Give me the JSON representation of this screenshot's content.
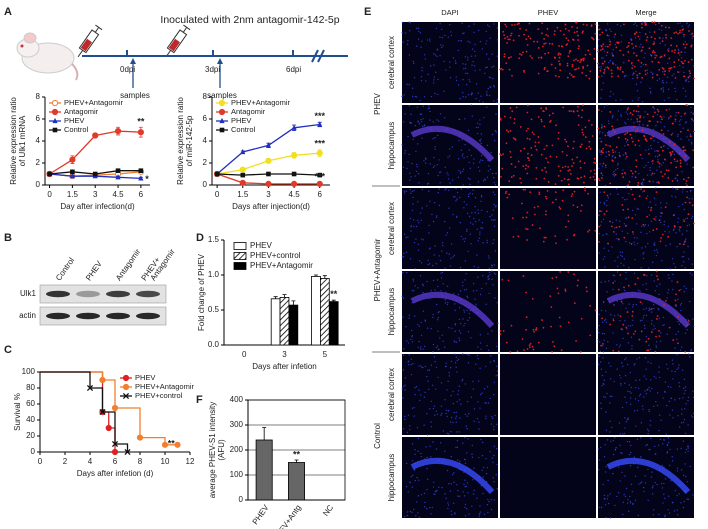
{
  "panel_labels": [
    "A",
    "B",
    "C",
    "D",
    "E",
    "F"
  ],
  "schematic": {
    "title": "Inoculated with 2nm antagomir-142-5p",
    "timepoints": [
      "0dpi",
      "3dpi",
      "6dpi"
    ],
    "sampling": [
      "samples",
      "samples"
    ]
  },
  "chart_data": [
    {
      "type": "line",
      "x_label": "Day after infection(d)",
      "y_label": [
        "Relative expression ratio",
        "of Ulk1 mRNA"
      ],
      "x": [
        0,
        1.5,
        3,
        4.5,
        6
      ],
      "xlim": [
        -0.3,
        6.6
      ],
      "xticks": [
        0,
        1.5,
        3,
        4.5,
        6
      ],
      "ylim": [
        0,
        8
      ],
      "yticks": [
        0,
        2,
        4,
        6,
        8
      ],
      "legend": "upper left",
      "series": [
        {
          "name": "PHEV+Antagomir",
          "color": "#f08030",
          "marker": "circle-open",
          "values": [
            1,
            0.8,
            0.9,
            1.0,
            1.2
          ],
          "errors": [
            0.05,
            0.1,
            0.1,
            0.1,
            0.15
          ]
        },
        {
          "name": "Antagomir",
          "color": "#e03a2a",
          "marker": "circle",
          "values": [
            1,
            2.3,
            4.5,
            4.9,
            4.8
          ],
          "errors": [
            0.05,
            0.35,
            0.2,
            0.35,
            0.45
          ]
        },
        {
          "name": "PHEV",
          "color": "#2030c0",
          "marker": "triangle",
          "values": [
            1,
            0.8,
            0.8,
            0.7,
            0.6
          ],
          "errors": [
            0.05,
            0.1,
            0.1,
            0.1,
            0.1
          ]
        },
        {
          "name": "Control",
          "color": "#111111",
          "marker": "square",
          "values": [
            1,
            1.2,
            1.0,
            1.3,
            1.3
          ],
          "errors": [
            0.05,
            0.1,
            0.1,
            0.1,
            0.1
          ]
        }
      ],
      "annotations": [
        {
          "text": "**",
          "x": 6,
          "y": 5.7
        },
        {
          "text": "*",
          "x": 6.4,
          "y": 0.5
        }
      ]
    },
    {
      "type": "line",
      "x_label": "Days after injection(d)",
      "y_label": [
        "Relative expression ratio",
        "of miR-142-5p"
      ],
      "x": [
        0,
        1.5,
        3,
        4.5,
        6
      ],
      "xlim": [
        -0.3,
        6.6
      ],
      "xticks": [
        0,
        1.5,
        3,
        4.5,
        6
      ],
      "ylim": [
        0,
        8
      ],
      "yticks": [
        0,
        2,
        4,
        6,
        8
      ],
      "legend": "upper left",
      "series": [
        {
          "name": "PHEV+Antagomir",
          "color": "#f0e020",
          "marker": "circle",
          "values": [
            1,
            1.4,
            2.2,
            2.7,
            2.9
          ],
          "errors": [
            0.05,
            0.1,
            0.2,
            0.25,
            0.3
          ]
        },
        {
          "name": "Antagomir",
          "color": "#e03a2a",
          "marker": "circle",
          "values": [
            1,
            0.2,
            0.1,
            0.1,
            0.1
          ],
          "errors": [
            0.05,
            0.05,
            0.05,
            0.05,
            0.05
          ]
        },
        {
          "name": "PHEV",
          "color": "#2030c0",
          "marker": "triangle",
          "values": [
            1,
            3.0,
            3.6,
            5.2,
            5.5
          ],
          "errors": [
            0.05,
            0.1,
            0.2,
            0.25,
            0.2
          ]
        },
        {
          "name": "Control",
          "color": "#111111",
          "marker": "square",
          "values": [
            1,
            0.9,
            1.0,
            1.0,
            0.9
          ],
          "errors": [
            0.05,
            0.05,
            0.05,
            0.05,
            0.05
          ]
        }
      ],
      "annotations": [
        {
          "text": "***",
          "x": 6,
          "y": 6.2
        },
        {
          "text": "***",
          "x": 6,
          "y": 3.7
        },
        {
          "text": "***",
          "x": 6,
          "y": 0.7
        }
      ]
    },
    {
      "type": "step",
      "x_label": "Days after infetion (d)",
      "y_label": [
        "Survival %"
      ],
      "xlim": [
        0,
        12
      ],
      "xticks": [
        0,
        2,
        4,
        6,
        8,
        10,
        12
      ],
      "ylim": [
        0,
        100
      ],
      "yticks": [
        0,
        20,
        40,
        60,
        80,
        100
      ],
      "legend": "upper right",
      "series": [
        {
          "name": "PHEV",
          "color": "#e02020",
          "marker": "circle",
          "x": [
            0,
            5,
            5.5,
            6
          ],
          "values": [
            100,
            50,
            30,
            0
          ]
        },
        {
          "name": "PHEV+Antagomir",
          "color": "#f08030",
          "marker": "circle",
          "x": [
            0,
            5,
            6,
            8,
            10,
            11
          ],
          "values": [
            100,
            90,
            55,
            18,
            9,
            9
          ]
        },
        {
          "name": "PHEV+control",
          "color": "#111111",
          "marker": "x",
          "x": [
            0,
            4,
            5,
            6,
            7
          ],
          "values": [
            100,
            80,
            50,
            10,
            0
          ]
        }
      ],
      "annotations": [
        {
          "text": "**",
          "x": 10.5,
          "y": 10
        }
      ]
    },
    {
      "type": "bar",
      "x_label": "Days after infetion",
      "y_label": [
        "Fold change of PHEV"
      ],
      "categories": [
        "0",
        "3",
        "5"
      ],
      "ylim": [
        0,
        1.5
      ],
      "yticks": [
        {
          "value": 0,
          "label": "0.0"
        },
        0.5,
        {
          "value": 1,
          "label": "1.0"
        },
        1.5
      ],
      "legend": "upper left",
      "series": [
        {
          "name": "PHEV",
          "color": "#ffffff",
          "values": [
            null,
            0.66,
            0.98
          ],
          "errors": [
            null,
            0.03,
            0.02
          ]
        },
        {
          "name": "PHEV+control",
          "color": "#ffffff",
          "hatch": true,
          "values": [
            null,
            0.68,
            0.95
          ],
          "errors": [
            null,
            0.04,
            0.04
          ]
        },
        {
          "name": "PHEV+Antagomir",
          "color": "#000000",
          "values": [
            null,
            0.57,
            0.62
          ],
          "errors": [
            null,
            0.06,
            0.02
          ]
        }
      ],
      "annotations": [
        {
          "text": "**",
          "x": "5",
          "y": 0.72
        }
      ]
    },
    {
      "type": "bar",
      "y_label": [
        "average PHEV-S1 intensity",
        "(AFU)"
      ],
      "categories": [
        "PHEV",
        "PHEV+Antg",
        "NC"
      ],
      "ylim": [
        0,
        400
      ],
      "yticks": [
        0,
        100,
        200,
        300,
        400
      ],
      "grid": true,
      "series": [
        {
          "name": null,
          "color": "#666666",
          "values": [
            240,
            150,
            0
          ],
          "errors": [
            50,
            10,
            null
          ]
        }
      ],
      "annotations": [
        {
          "text": "**",
          "x": "PHEV+Antg",
          "y": 180
        }
      ]
    }
  ],
  "blot": {
    "lanes": [
      [
        "Control"
      ],
      [
        "PHEV"
      ],
      [
        "Antagomir"
      ],
      [
        "PHEV+",
        "Antagomir"
      ]
    ],
    "rows": [
      "Ulk1",
      "actin"
    ]
  },
  "micrographs": {
    "columns": [
      "DAPI",
      "PHEV",
      "Merge"
    ],
    "groups": [
      {
        "name": "PHEV",
        "regions": [
          "cerebral cortex",
          "hippocampus"
        ]
      },
      {
        "name": "PHEV+Antagomir",
        "regions": [
          "cerebral cortex",
          "hippocampus"
        ]
      },
      {
        "name": "Control",
        "regions": [
          "cerebral cortex",
          "hippocampus"
        ]
      }
    ]
  }
}
